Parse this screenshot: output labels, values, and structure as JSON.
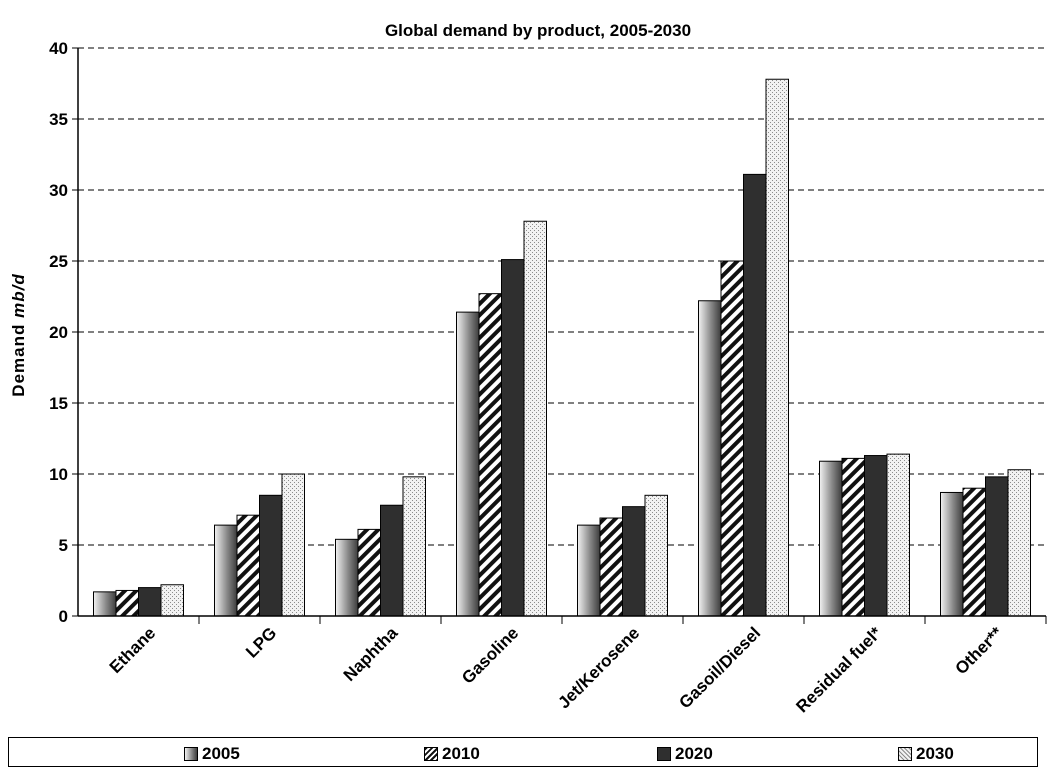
{
  "chart_data": {
    "type": "bar",
    "title": "Global demand by product, 2005-2030",
    "ylabel_prefix": "Demand ",
    "ylabel_unit": "mb/d",
    "ylim": [
      0,
      40
    ],
    "yticks": [
      0,
      5,
      10,
      15,
      20,
      25,
      30,
      35,
      40
    ],
    "grid": "dashed horizontal",
    "legend_position": "bottom",
    "categories": [
      "Ethane",
      "LPG",
      "Naphtha",
      "Gasoline",
      "Jet/Kerosene",
      "Gasoil/Diesel",
      "Residual fuel*",
      "Other**"
    ],
    "series": [
      {
        "name": "2005",
        "pattern": "gradient-gray",
        "values": [
          1.7,
          6.4,
          5.4,
          21.4,
          6.4,
          22.2,
          10.9,
          8.7
        ]
      },
      {
        "name": "2010",
        "pattern": "diagonal-hatch",
        "values": [
          1.8,
          7.1,
          6.1,
          22.7,
          6.9,
          25.0,
          11.1,
          9.0
        ]
      },
      {
        "name": "2020",
        "pattern": "dark-solid",
        "values": [
          2.0,
          8.5,
          7.8,
          25.1,
          7.7,
          31.1,
          11.3,
          9.8
        ]
      },
      {
        "name": "2030",
        "pattern": "light-crosshatch",
        "values": [
          2.2,
          10.0,
          9.8,
          27.8,
          8.5,
          37.8,
          11.4,
          10.3
        ]
      }
    ]
  }
}
